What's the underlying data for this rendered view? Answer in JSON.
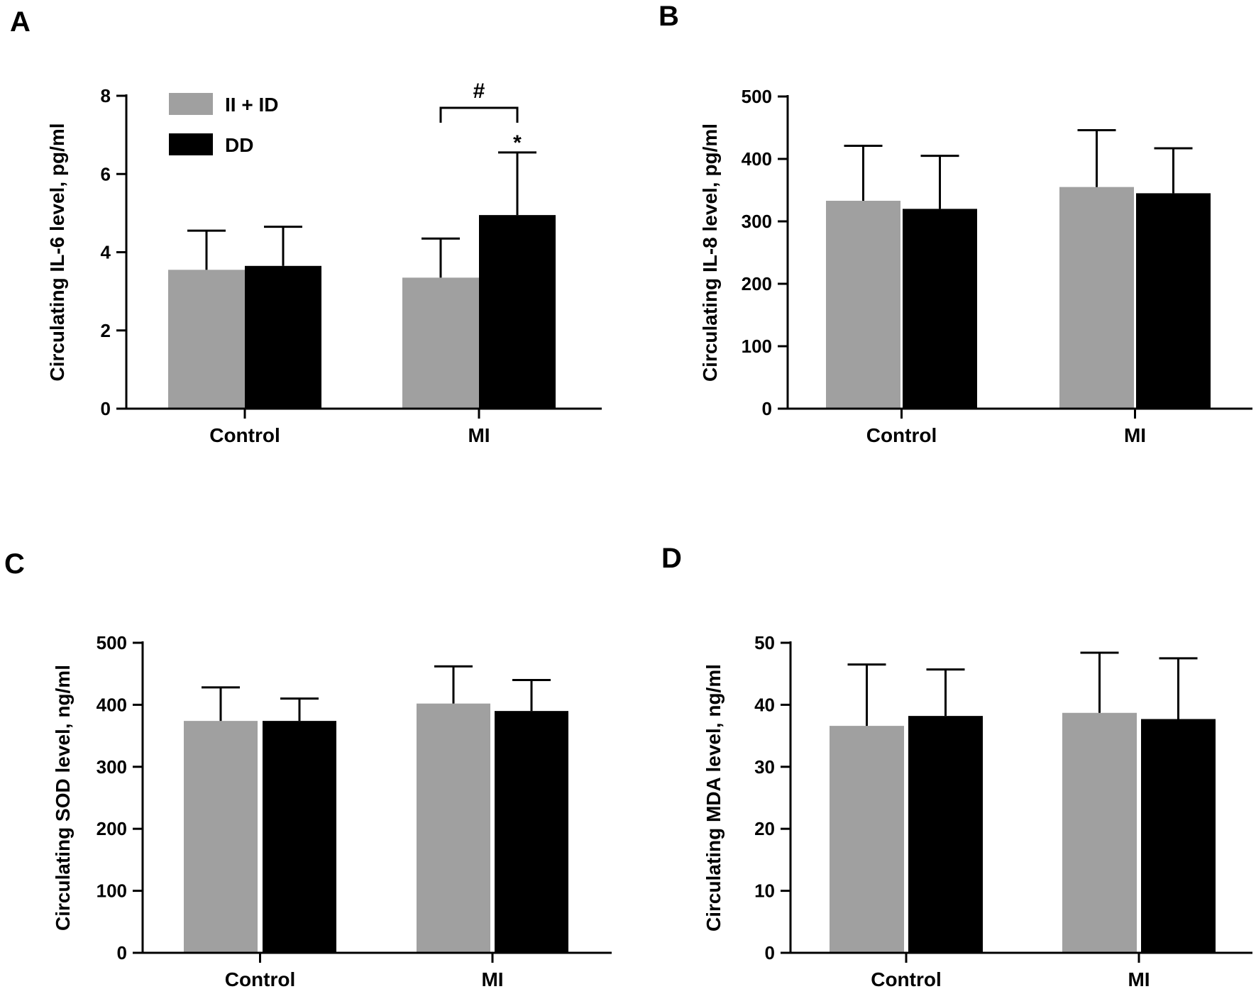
{
  "figure": {
    "legend": {
      "entries": [
        {
          "name": "II + ID",
          "color": "#a0a0a0"
        },
        {
          "name": "DD",
          "color": "#000000"
        }
      ]
    }
  },
  "chart_data": [
    {
      "panel": "A",
      "type": "bar",
      "categories": [
        "Control",
        "MI"
      ],
      "ylabel": "Circulating IL-6 level, pg/ml",
      "ylim": [
        0,
        8
      ],
      "yticks": [
        0,
        2,
        4,
        6,
        8
      ],
      "legend_position": "top-left",
      "series": [
        {
          "name": "II + ID",
          "color": "#a0a0a0",
          "values": [
            3.55,
            3.35
          ],
          "errors": [
            1.0,
            1.0
          ]
        },
        {
          "name": "DD",
          "color": "#000000",
          "values": [
            3.65,
            4.95
          ],
          "errors": [
            1.0,
            1.6
          ]
        }
      ],
      "annotations": {
        "bracket": {
          "label": "#",
          "from": {
            "category": 1,
            "series": 0
          },
          "to": {
            "category": 1,
            "series": 1
          }
        },
        "star": {
          "label": "*",
          "category": 1,
          "series": 1
        }
      }
    },
    {
      "panel": "B",
      "type": "bar",
      "categories": [
        "Control",
        "MI"
      ],
      "ylabel": "Circulating IL-8 level, pg/ml",
      "ylim": [
        0,
        500
      ],
      "yticks": [
        0,
        100,
        200,
        300,
        400,
        500
      ],
      "series": [
        {
          "name": "II + ID",
          "color": "#a0a0a0",
          "values": [
            333,
            355
          ],
          "errors": [
            88,
            91
          ]
        },
        {
          "name": "DD",
          "color": "#000000",
          "values": [
            320,
            345
          ],
          "errors": [
            85,
            72
          ]
        }
      ]
    },
    {
      "panel": "C",
      "type": "bar",
      "categories": [
        "Control",
        "MI"
      ],
      "ylabel": "Circulating SOD level, ng/ml",
      "ylim": [
        0,
        500
      ],
      "yticks": [
        0,
        100,
        200,
        300,
        400,
        500
      ],
      "series": [
        {
          "name": "II + ID",
          "color": "#a0a0a0",
          "values": [
            374,
            402
          ],
          "errors": [
            54,
            60
          ]
        },
        {
          "name": "DD",
          "color": "#000000",
          "values": [
            374,
            390
          ],
          "errors": [
            36,
            50
          ]
        }
      ]
    },
    {
      "panel": "D",
      "type": "bar",
      "categories": [
        "Control",
        "MI"
      ],
      "ylabel": "Circulating MDA level, ng/ml",
      "ylim": [
        0,
        50
      ],
      "yticks": [
        0,
        10,
        20,
        30,
        40,
        50
      ],
      "series": [
        {
          "name": "II + ID",
          "color": "#a0a0a0",
          "values": [
            36.6,
            38.7
          ],
          "errors": [
            9.9,
            9.7
          ]
        },
        {
          "name": "DD",
          "color": "#000000",
          "values": [
            38.2,
            37.7
          ],
          "errors": [
            7.5,
            9.8
          ]
        }
      ]
    }
  ]
}
